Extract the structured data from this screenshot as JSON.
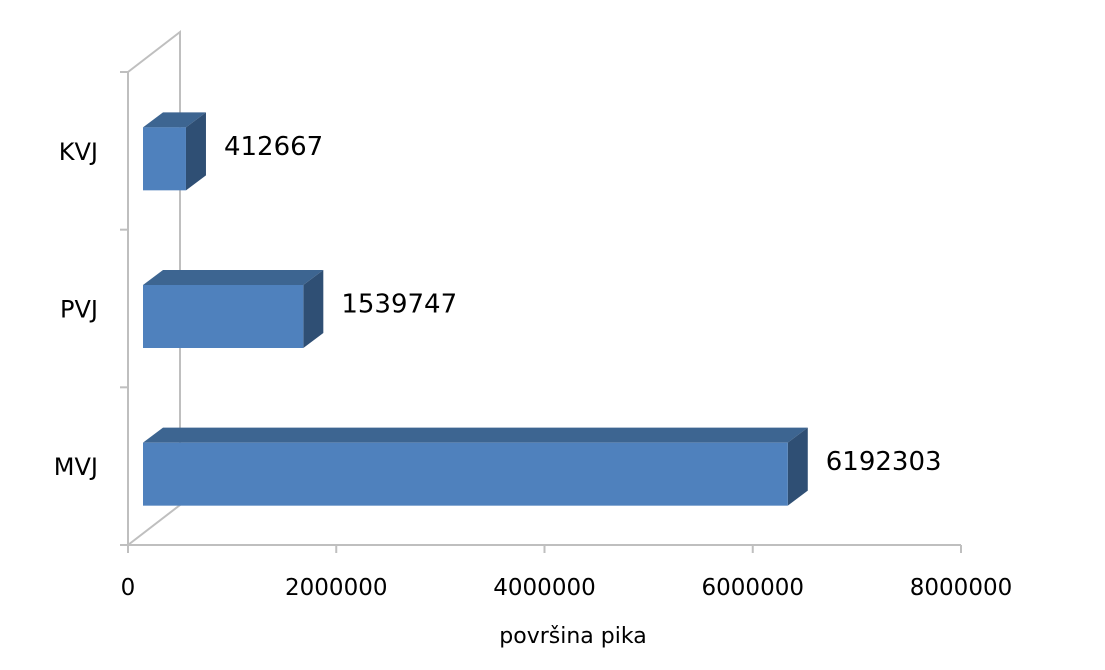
{
  "chart_data": {
    "type": "bar",
    "orientation": "horizontal",
    "three_d": true,
    "categories": [
      "KVJ",
      "PVJ",
      "MVJ"
    ],
    "values": [
      412667,
      1539747,
      6192303
    ],
    "data_labels": [
      "412667",
      "1539747",
      "6192303"
    ],
    "xlabel": "površina pika",
    "ylabel": "",
    "xlim": [
      0,
      8000000
    ],
    "x_ticks": [
      0,
      2000000,
      4000000,
      6000000,
      8000000
    ],
    "x_tick_labels": [
      "0",
      "2000000",
      "4000000",
      "6000000",
      "8000000"
    ],
    "grid": false,
    "legend": false,
    "colors": {
      "bar_front": "#4f81bd",
      "bar_top": "#3d6591",
      "bar_side": "#2f4f74",
      "wall": "#bfbfbf"
    }
  }
}
